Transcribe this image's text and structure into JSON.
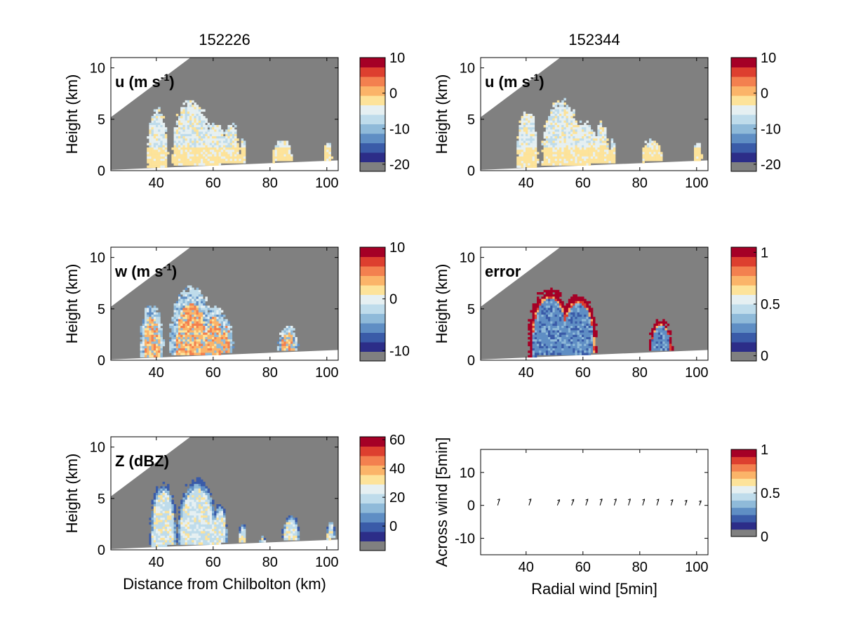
{
  "colormap": [
    "#808080",
    "#2c2d88",
    "#3a5ba8",
    "#5f8ec4",
    "#8fbad9",
    "#bfdceb",
    "#e6f0f2",
    "#fde39a",
    "#fbb469",
    "#f3804f",
    "#dd3f2f",
    "#a50026"
  ],
  "titles": {
    "left": "152226",
    "right": "152344"
  },
  "chart_data": [
    {
      "type": "heatmap",
      "panel": "u-left",
      "title": "152226",
      "label_main": "u (m s",
      "label_sup": "-1",
      "label_end": ")",
      "xlabel": "",
      "ylabel": "Height (km)",
      "xlim": [
        24,
        104
      ],
      "ylim": [
        0,
        11
      ],
      "xticks": [
        "40",
        "60",
        "80",
        "100"
      ],
      "yticks": [
        "0",
        "5",
        "10"
      ],
      "colorbar_ticks": [
        "10",
        "0",
        "-10",
        "-20"
      ],
      "colorbar_range": [
        -22,
        10
      ]
    },
    {
      "type": "heatmap",
      "panel": "u-right",
      "title": "152344",
      "label_main": "u (m s",
      "label_sup": "-1",
      "label_end": ")",
      "xlabel": "",
      "ylabel": "Height (km)",
      "xlim": [
        24,
        104
      ],
      "ylim": [
        0,
        11
      ],
      "xticks": [
        "40",
        "60",
        "80",
        "100"
      ],
      "yticks": [
        "0",
        "5",
        "10"
      ],
      "colorbar_ticks": [
        "10",
        "0",
        "-10",
        "-20"
      ],
      "colorbar_range": [
        -22,
        10
      ]
    },
    {
      "type": "heatmap",
      "panel": "w-left",
      "label_main": "w (m s",
      "label_sup": "-1",
      "label_end": ")",
      "xlabel": "",
      "ylabel": "Height (km)",
      "xlim": [
        24,
        104
      ],
      "ylim": [
        0,
        11
      ],
      "xticks": [
        "40",
        "60",
        "80",
        "100"
      ],
      "yticks": [
        "0",
        "5",
        "10"
      ],
      "colorbar_ticks": [
        "10",
        "0",
        "-10"
      ],
      "colorbar_range": [
        -12,
        10
      ]
    },
    {
      "type": "heatmap",
      "panel": "error-right",
      "label_main": "error",
      "label_sup": "",
      "label_end": "",
      "xlabel": "",
      "ylabel": "Height (km)",
      "xlim": [
        24,
        104
      ],
      "ylim": [
        0,
        11
      ],
      "xticks": [
        "40",
        "60",
        "80",
        "100"
      ],
      "yticks": [
        "0",
        "5",
        "10"
      ],
      "colorbar_ticks": [
        "1",
        "0.5",
        "0"
      ],
      "colorbar_range": [
        -0.05,
        1.05
      ]
    },
    {
      "type": "heatmap",
      "panel": "z-left",
      "label_main": "Z (dBZ)",
      "label_sup": "",
      "label_end": "",
      "xlabel": "Distance from Chilbolton (km)",
      "ylabel": "Height (km)",
      "xlim": [
        24,
        104
      ],
      "ylim": [
        0,
        11
      ],
      "xticks": [
        "40",
        "60",
        "80",
        "100"
      ],
      "yticks": [
        "0",
        "5",
        "10"
      ],
      "colorbar_ticks": [
        "60",
        "40",
        "20",
        "0"
      ],
      "colorbar_range": [
        -17,
        62
      ]
    },
    {
      "type": "scatter",
      "panel": "quiver-right",
      "xlabel": "Radial wind [5min]",
      "ylabel": "Across wind [5min]",
      "xlim": [
        24,
        104
      ],
      "ylim": [
        -15,
        17
      ],
      "xticks": [
        "40",
        "60",
        "80",
        "100"
      ],
      "yticks": [
        "10",
        "0",
        "-10"
      ],
      "colorbar_ticks": [
        "1",
        "0.5",
        "0"
      ],
      "colorbar_range": [
        0,
        1
      ],
      "x": [
        30,
        41,
        51,
        56,
        61,
        66,
        71,
        76,
        81,
        86,
        91,
        96,
        101
      ],
      "y": [
        0,
        0,
        0,
        0,
        0,
        0,
        0,
        0,
        0,
        0,
        0,
        0,
        0
      ],
      "u": [
        1.2,
        1.3,
        1.4,
        1.4,
        1.3,
        1.3,
        1.3,
        1.2,
        1.2,
        1.2,
        1.1,
        1.0,
        1.0
      ],
      "v": [
        2.5,
        2.5,
        2.2,
        2.3,
        2.4,
        2.5,
        2.5,
        2.5,
        2.4,
        2.4,
        2.2,
        2.0,
        1.8
      ]
    }
  ]
}
